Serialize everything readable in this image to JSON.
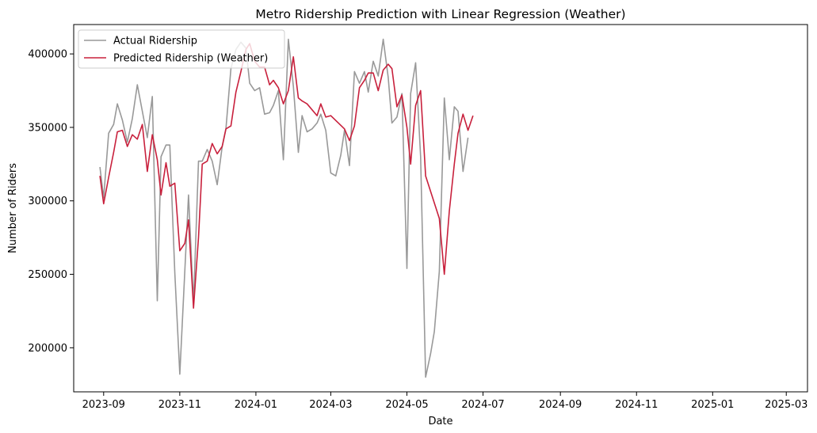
{
  "chart_data": {
    "type": "line",
    "title": "Metro Ridership Prediction with Linear Regression (Weather)",
    "xlabel": "Date",
    "ylabel": "Number of Riders",
    "x_axis_type": "date",
    "xlim": [
      "2023-08-08",
      "2025-03-18"
    ],
    "ylim": [
      170000,
      420000
    ],
    "x_ticks": [
      "2023-09-01",
      "2023-11-01",
      "2024-01-01",
      "2024-03-01",
      "2024-05-01",
      "2024-07-01",
      "2024-09-01",
      "2024-11-01",
      "2025-01-01",
      "2025-03-01"
    ],
    "x_tick_labels": [
      "2023-09",
      "2023-11",
      "2024-01",
      "2024-03",
      "2024-05",
      "2024-07",
      "2024-09",
      "2024-11",
      "2025-01",
      "2025-03"
    ],
    "y_ticks": [
      200000,
      250000,
      300000,
      350000,
      400000
    ],
    "y_tick_labels": [
      "200000",
      "250000",
      "300000",
      "350000",
      "400000"
    ],
    "grid": false,
    "legend_position": "top-left",
    "series": [
      {
        "name": "Actual Ridership",
        "color": "#999999",
        "points": [
          [
            "2023-08-29",
            323000
          ],
          [
            "2023-09-01",
            302000
          ],
          [
            "2023-09-05",
            346000
          ],
          [
            "2023-09-09",
            352000
          ],
          [
            "2023-09-12",
            366000
          ],
          [
            "2023-09-16",
            355000
          ],
          [
            "2023-09-20",
            340000
          ],
          [
            "2023-09-24",
            356000
          ],
          [
            "2023-09-28",
            379000
          ],
          [
            "2023-10-02",
            361000
          ],
          [
            "2023-10-06",
            343000
          ],
          [
            "2023-10-10",
            371000
          ],
          [
            "2023-10-14",
            232000
          ],
          [
            "2023-10-17",
            330000
          ],
          [
            "2023-10-21",
            338000
          ],
          [
            "2023-10-24",
            338000
          ],
          [
            "2023-10-28",
            251000
          ],
          [
            "2023-11-01",
            182000
          ],
          [
            "2023-11-05",
            252000
          ],
          [
            "2023-11-08",
            304000
          ],
          [
            "2023-11-12",
            230000
          ],
          [
            "2023-11-16",
            327000
          ],
          [
            "2023-11-19",
            327000
          ],
          [
            "2023-11-23",
            335000
          ],
          [
            "2023-11-27",
            327000
          ],
          [
            "2023-12-01",
            311000
          ],
          [
            "2023-12-05",
            337000
          ],
          [
            "2023-12-08",
            349000
          ],
          [
            "2023-12-12",
            390000
          ],
          [
            "2023-12-16",
            403000
          ],
          [
            "2023-12-20",
            408000
          ],
          [
            "2023-12-24",
            404000
          ],
          [
            "2023-12-27",
            380000
          ],
          [
            "2023-12-31",
            375000
          ],
          [
            "2024-01-04",
            377000
          ],
          [
            "2024-01-08",
            359000
          ],
          [
            "2024-01-12",
            360000
          ],
          [
            "2024-01-15",
            365000
          ],
          [
            "2024-01-19",
            375000
          ],
          [
            "2024-01-23",
            328000
          ],
          [
            "2024-01-27",
            410000
          ],
          [
            "2024-01-31",
            378000
          ],
          [
            "2024-02-04",
            333000
          ],
          [
            "2024-02-07",
            358000
          ],
          [
            "2024-02-11",
            347000
          ],
          [
            "2024-02-15",
            349000
          ],
          [
            "2024-02-19",
            353000
          ],
          [
            "2024-02-22",
            359000
          ],
          [
            "2024-02-26",
            348000
          ],
          [
            "2024-03-01",
            319000
          ],
          [
            "2024-03-05",
            317000
          ],
          [
            "2024-03-09",
            331000
          ],
          [
            "2024-03-12",
            348000
          ],
          [
            "2024-03-16",
            324000
          ],
          [
            "2024-03-20",
            388000
          ],
          [
            "2024-03-24",
            380000
          ],
          [
            "2024-03-28",
            388000
          ],
          [
            "2024-03-31",
            374000
          ],
          [
            "2024-04-04",
            395000
          ],
          [
            "2024-04-08",
            385000
          ],
          [
            "2024-04-12",
            410000
          ],
          [
            "2024-04-16",
            384000
          ],
          [
            "2024-04-19",
            353000
          ],
          [
            "2024-04-23",
            357000
          ],
          [
            "2024-04-27",
            373000
          ],
          [
            "2024-05-01",
            254000
          ],
          [
            "2024-05-04",
            373000
          ],
          [
            "2024-05-08",
            394000
          ],
          [
            "2024-05-12",
            330000
          ],
          [
            "2024-05-16",
            180000
          ],
          [
            "2024-05-20",
            196000
          ],
          [
            "2024-05-23",
            211000
          ],
          [
            "2024-05-27",
            252000
          ],
          [
            "2024-05-31",
            370000
          ],
          [
            "2024-06-04",
            328000
          ],
          [
            "2024-06-08",
            364000
          ],
          [
            "2024-06-11",
            361000
          ],
          [
            "2024-06-15",
            320000
          ],
          [
            "2024-06-19",
            343000
          ]
        ]
      },
      {
        "name": "Predicted Ridership (Weather)",
        "color": "#c8203c",
        "points": [
          [
            "2023-08-29",
            317000
          ],
          [
            "2023-09-01",
            298000
          ],
          [
            "2023-09-05",
            316000
          ],
          [
            "2023-09-09",
            333000
          ],
          [
            "2023-09-12",
            347000
          ],
          [
            "2023-09-16",
            348000
          ],
          [
            "2023-09-20",
            337000
          ],
          [
            "2023-09-24",
            345000
          ],
          [
            "2023-09-28",
            342000
          ],
          [
            "2023-10-02",
            352000
          ],
          [
            "2023-10-06",
            320000
          ],
          [
            "2023-10-10",
            345000
          ],
          [
            "2023-10-14",
            328000
          ],
          [
            "2023-10-17",
            304000
          ],
          [
            "2023-10-21",
            326000
          ],
          [
            "2023-10-24",
            310000
          ],
          [
            "2023-10-28",
            312000
          ],
          [
            "2023-11-01",
            266000
          ],
          [
            "2023-11-05",
            271000
          ],
          [
            "2023-11-08",
            287000
          ],
          [
            "2023-11-12",
            227000
          ],
          [
            "2023-11-16",
            275000
          ],
          [
            "2023-11-19",
            325000
          ],
          [
            "2023-11-23",
            327000
          ],
          [
            "2023-11-27",
            339000
          ],
          [
            "2023-12-01",
            332000
          ],
          [
            "2023-12-05",
            337000
          ],
          [
            "2023-12-08",
            349000
          ],
          [
            "2023-12-12",
            351000
          ],
          [
            "2023-12-16",
            374000
          ],
          [
            "2023-12-20",
            388000
          ],
          [
            "2023-12-24",
            403000
          ],
          [
            "2023-12-27",
            407000
          ],
          [
            "2023-12-31",
            395000
          ],
          [
            "2024-01-04",
            391000
          ],
          [
            "2024-01-08",
            391000
          ],
          [
            "2024-01-12",
            379000
          ],
          [
            "2024-01-15",
            382000
          ],
          [
            "2024-01-19",
            377000
          ],
          [
            "2024-01-23",
            366000
          ],
          [
            "2024-01-27",
            375000
          ],
          [
            "2024-01-31",
            398000
          ],
          [
            "2024-02-04",
            370000
          ],
          [
            "2024-02-07",
            368000
          ],
          [
            "2024-02-11",
            366000
          ],
          [
            "2024-02-19",
            358000
          ],
          [
            "2024-02-22",
            366000
          ],
          [
            "2024-02-26",
            357000
          ],
          [
            "2024-03-01",
            358000
          ],
          [
            "2024-03-12",
            349000
          ],
          [
            "2024-03-16",
            341000
          ],
          [
            "2024-03-20",
            351000
          ],
          [
            "2024-03-24",
            377000
          ],
          [
            "2024-03-28",
            382000
          ],
          [
            "2024-03-31",
            387000
          ],
          [
            "2024-04-04",
            387000
          ],
          [
            "2024-04-08",
            375000
          ],
          [
            "2024-04-12",
            389000
          ],
          [
            "2024-04-16",
            393000
          ],
          [
            "2024-04-19",
            390000
          ],
          [
            "2024-04-23",
            364000
          ],
          [
            "2024-04-27",
            372000
          ],
          [
            "2024-05-01",
            350000
          ],
          [
            "2024-05-04",
            325000
          ],
          [
            "2024-05-08",
            365000
          ],
          [
            "2024-05-12",
            375000
          ],
          [
            "2024-05-16",
            317000
          ],
          [
            "2024-05-27",
            288000
          ],
          [
            "2024-05-31",
            250000
          ],
          [
            "2024-06-04",
            293000
          ],
          [
            "2024-06-08",
            325000
          ],
          [
            "2024-06-11",
            346000
          ],
          [
            "2024-06-15",
            359000
          ],
          [
            "2024-06-19",
            348000
          ],
          [
            "2024-06-23",
            358000
          ]
        ]
      }
    ]
  }
}
